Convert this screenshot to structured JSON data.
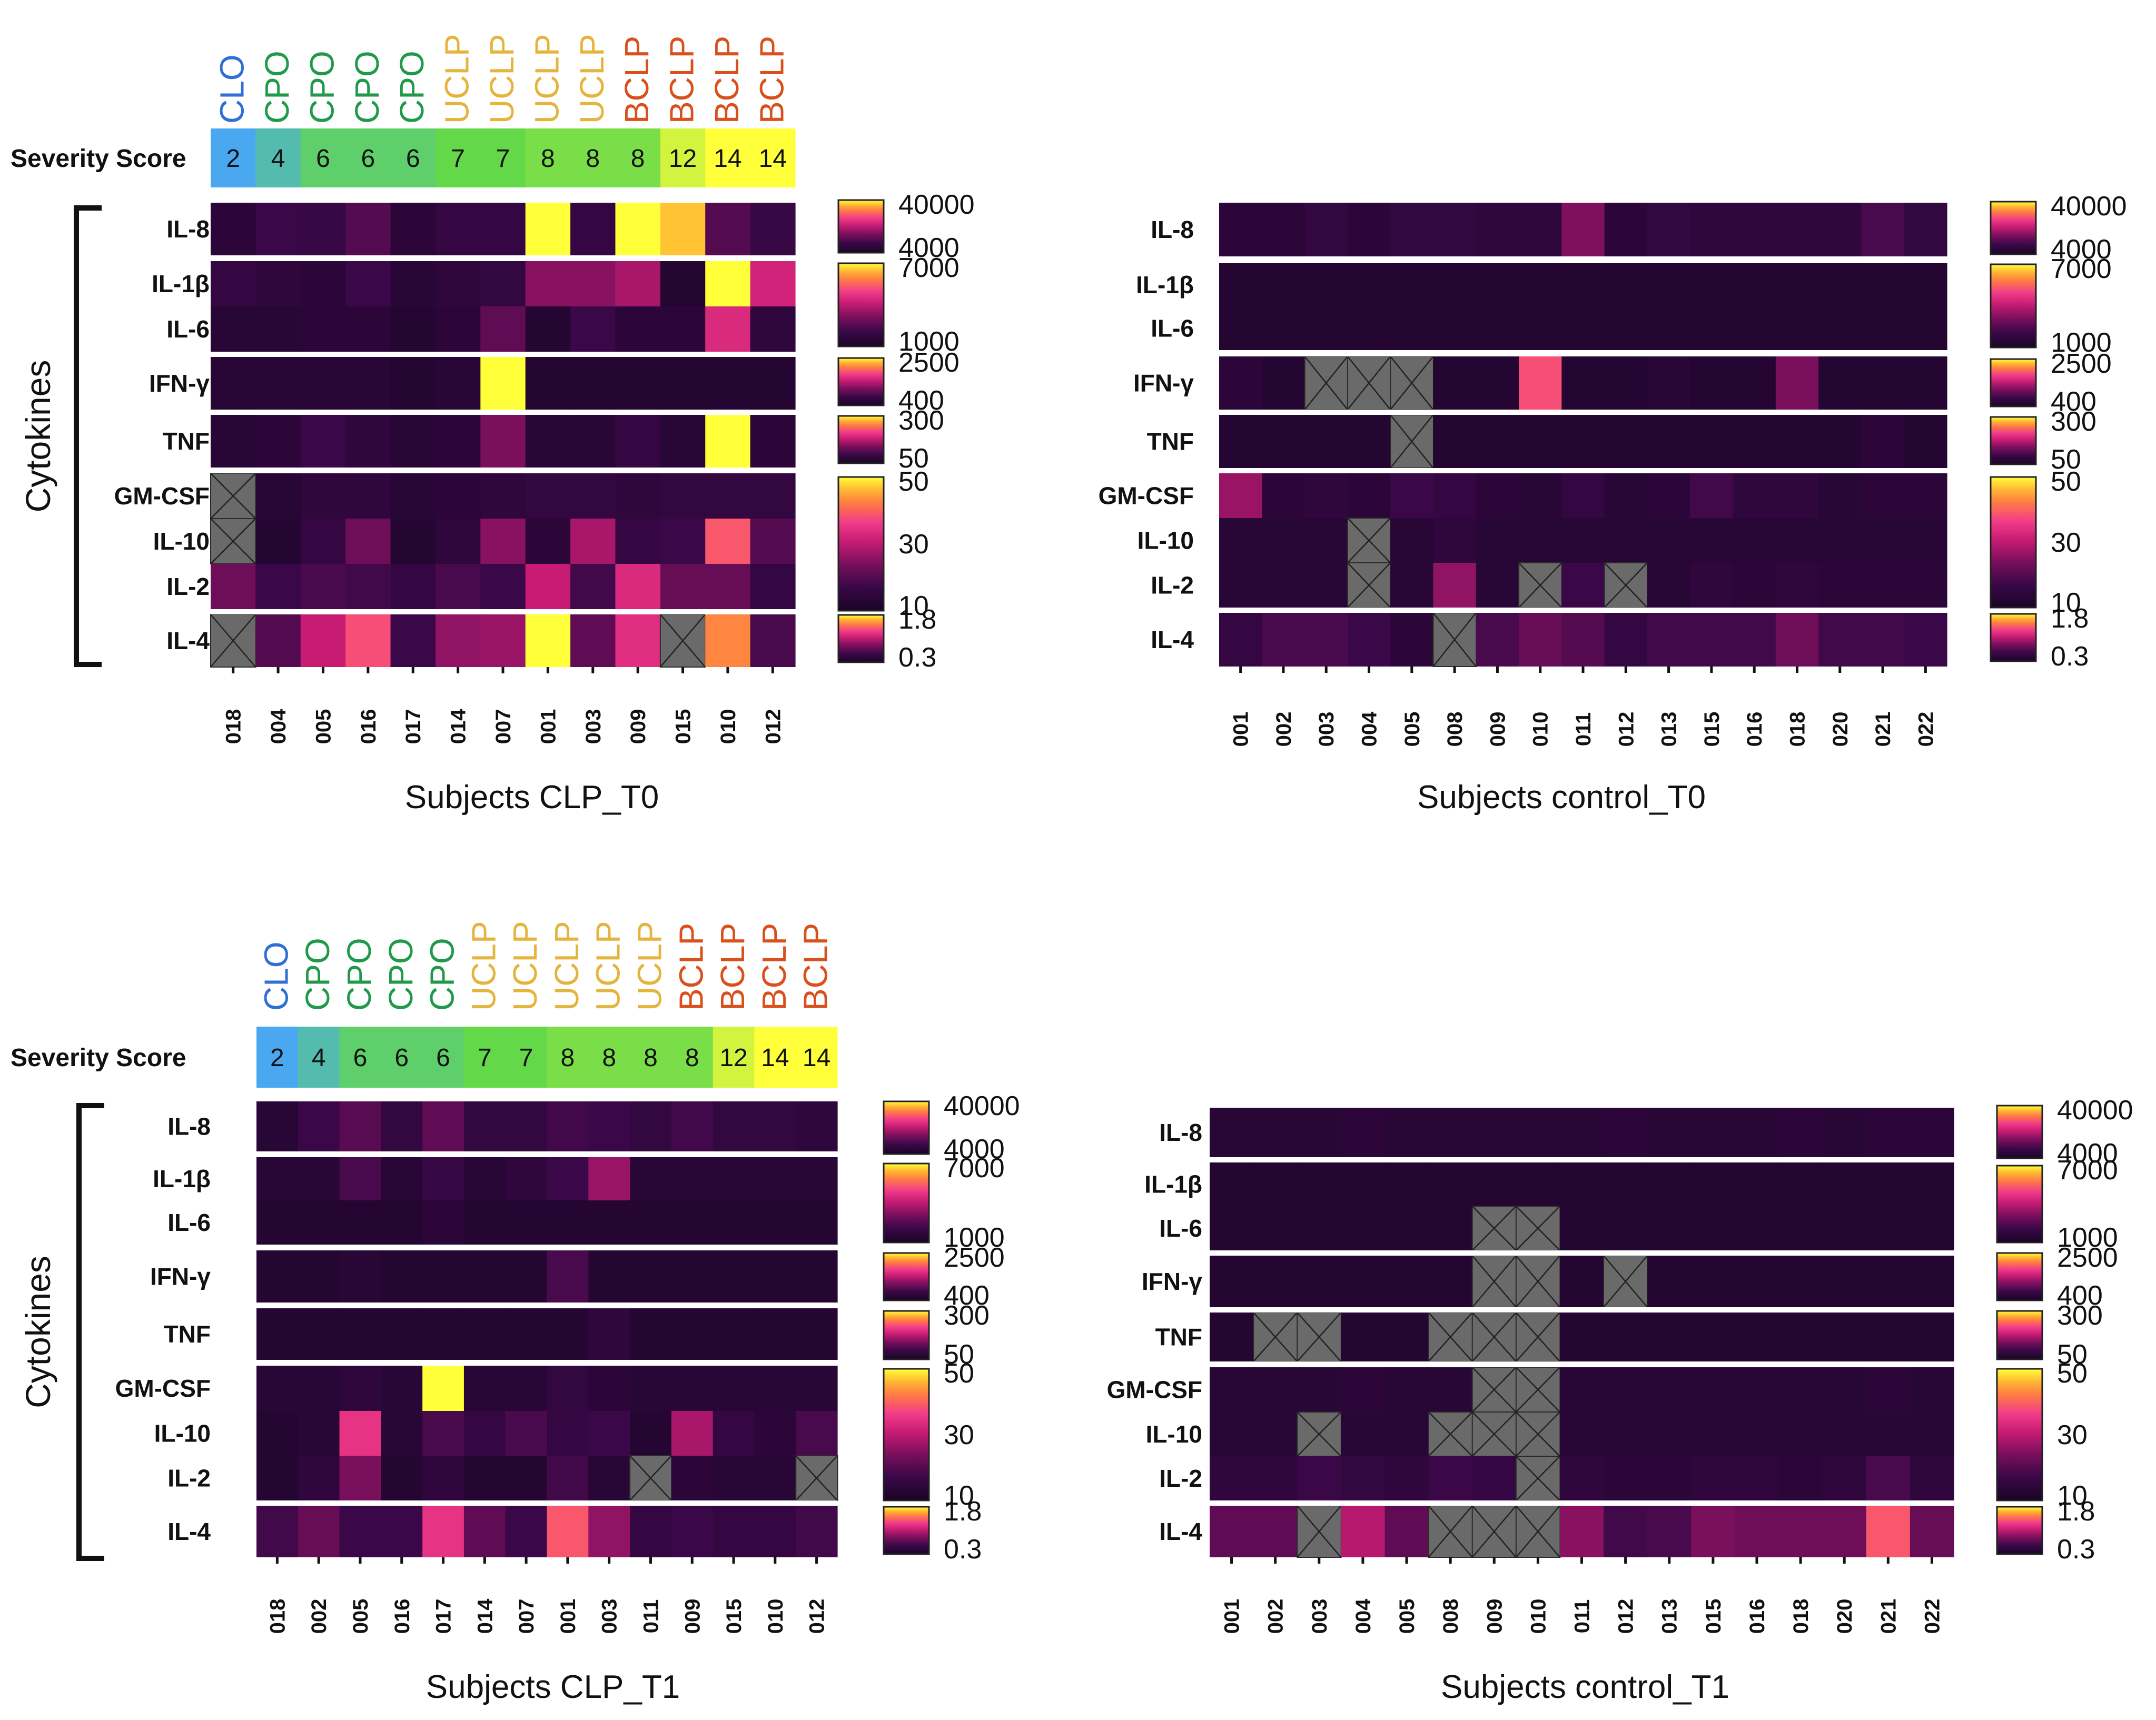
{
  "labels": {
    "severity_score": "Severity Score",
    "cytokines": "Cytokines"
  },
  "colors": {
    "CLO": "#2f6fd6",
    "CPO": "#1f9a4a",
    "UCLP": "#e5b43c",
    "BCLP": "#d9501d",
    "na_cell": "#6a6a6a",
    "score_low": "#4aa8f0",
    "score_mid": "#63d94a",
    "score_high": "#ffff3a",
    "heat_low": "#1a0426",
    "heat_high": "#ffff3a"
  },
  "row_groups": [
    [
      "IL-8"
    ],
    [
      "IL-1β",
      "IL-6"
    ],
    [
      "IFN-γ"
    ],
    [
      "TNF"
    ],
    [
      "GM-CSF",
      "IL-10",
      "IL-2"
    ],
    [
      "IL-4"
    ]
  ],
  "legends": [
    {
      "high": "40000",
      "low": "4000"
    },
    {
      "high": "7000",
      "low": "1000"
    },
    {
      "high": "2500",
      "low": "400"
    },
    {
      "high": "300",
      "low": "50"
    },
    {
      "high": "50",
      "mid": "30",
      "low": "10"
    },
    {
      "high": "1.8",
      "low": "0.3"
    }
  ],
  "chart_data": [
    {
      "type": "heatmap",
      "title": "Subjects CLP_T0",
      "xlabel": "Subjects CLP_T0",
      "ylabel": "Cytokines",
      "value_scale": "relative intensity 0-1 within each cytokine (per-row color scale)",
      "columns": [
        "018",
        "004",
        "005",
        "016",
        "017",
        "014",
        "007",
        "001",
        "003",
        "009",
        "015",
        "010",
        "012"
      ],
      "groups": [
        "CLO",
        "CPO",
        "CPO",
        "CPO",
        "CPO",
        "UCLP",
        "UCLP",
        "UCLP",
        "UCLP",
        "BCLP",
        "BCLP",
        "BCLP",
        "BCLP"
      ],
      "severity_scores": [
        2,
        4,
        6,
        6,
        6,
        7,
        7,
        8,
        8,
        8,
        12,
        14,
        14
      ],
      "rows": [
        "IL-8",
        "IL-1β",
        "IL-6",
        "IFN-γ",
        "TNF",
        "GM-CSF",
        "IL-10",
        "IL-2",
        "IL-4"
      ],
      "values": [
        [
          0.1,
          0.18,
          0.16,
          0.25,
          0.1,
          0.15,
          0.15,
          1.0,
          0.15,
          1.0,
          0.92,
          0.25,
          0.16
        ],
        [
          0.15,
          0.12,
          0.1,
          0.18,
          0.08,
          0.12,
          0.14,
          0.38,
          0.38,
          0.45,
          0.06,
          1.0,
          0.55
        ],
        [
          0.08,
          0.08,
          0.1,
          0.1,
          0.06,
          0.1,
          0.28,
          0.06,
          0.18,
          0.1,
          0.1,
          0.58,
          0.12
        ],
        [
          0.08,
          0.08,
          0.08,
          0.08,
          0.06,
          0.08,
          1.0,
          0.06,
          0.06,
          0.06,
          0.06,
          0.06,
          0.06
        ],
        [
          0.08,
          0.1,
          0.18,
          0.12,
          0.08,
          0.1,
          0.35,
          0.08,
          0.08,
          0.15,
          0.08,
          1.0,
          0.1
        ],
        [
          null,
          0.08,
          0.12,
          0.12,
          0.08,
          0.1,
          0.12,
          0.14,
          0.14,
          0.12,
          0.14,
          0.14,
          0.14
        ],
        [
          null,
          0.06,
          0.15,
          0.32,
          0.06,
          0.12,
          0.38,
          0.1,
          0.45,
          0.15,
          0.18,
          0.72,
          0.25
        ],
        [
          0.32,
          0.18,
          0.22,
          0.2,
          0.15,
          0.22,
          0.18,
          0.52,
          0.2,
          0.58,
          0.3,
          0.3,
          0.15
        ],
        [
          null,
          0.25,
          0.52,
          0.7,
          0.18,
          0.4,
          0.42,
          1.0,
          0.28,
          0.6,
          null,
          0.82,
          0.22
        ]
      ]
    },
    {
      "type": "heatmap",
      "title": "Subjects control_T0",
      "xlabel": "Subjects control_T0",
      "value_scale": "relative intensity 0-1 within each cytokine (per-row color scale)",
      "columns": [
        "001",
        "002",
        "003",
        "004",
        "005",
        "008",
        "009",
        "010",
        "011",
        "012",
        "013",
        "015",
        "016",
        "018",
        "020",
        "021",
        "022"
      ],
      "rows": [
        "IL-8",
        "IL-1β",
        "IL-6",
        "IFN-γ",
        "TNF",
        "GM-CSF",
        "IL-10",
        "IL-2",
        "IL-4"
      ],
      "values": [
        [
          0.1,
          0.1,
          0.14,
          0.1,
          0.14,
          0.14,
          0.12,
          0.12,
          0.36,
          0.1,
          0.14,
          0.12,
          0.12,
          0.12,
          0.12,
          0.22,
          0.14
        ],
        [
          0.06,
          0.06,
          0.06,
          0.06,
          0.06,
          0.06,
          0.06,
          0.06,
          0.06,
          0.06,
          0.06,
          0.06,
          0.06,
          0.06,
          0.06,
          0.06,
          0.06
        ],
        [
          0.06,
          0.06,
          0.06,
          0.06,
          0.06,
          0.06,
          0.06,
          0.06,
          0.06,
          0.06,
          0.06,
          0.06,
          0.06,
          0.06,
          0.06,
          0.06,
          0.06
        ],
        [
          0.1,
          0.06,
          null,
          null,
          null,
          0.06,
          0.06,
          0.7,
          0.06,
          0.06,
          0.08,
          0.06,
          0.06,
          0.35,
          0.06,
          0.06,
          0.06
        ],
        [
          0.06,
          0.06,
          0.06,
          0.06,
          null,
          0.06,
          0.06,
          0.06,
          0.06,
          0.06,
          0.06,
          0.06,
          0.06,
          0.06,
          0.06,
          0.1,
          0.06
        ],
        [
          0.42,
          0.1,
          0.12,
          0.1,
          0.18,
          0.15,
          0.1,
          0.08,
          0.15,
          0.08,
          0.1,
          0.2,
          0.12,
          0.12,
          0.08,
          0.1,
          0.1
        ],
        [
          0.08,
          0.08,
          0.08,
          null,
          0.08,
          0.12,
          0.08,
          0.08,
          0.08,
          0.08,
          0.08,
          0.08,
          0.08,
          0.08,
          0.08,
          0.08,
          0.08
        ],
        [
          0.08,
          0.08,
          0.08,
          null,
          0.08,
          0.4,
          0.08,
          null,
          0.18,
          null,
          0.08,
          0.12,
          0.1,
          0.12,
          0.1,
          0.1,
          0.1
        ],
        [
          0.15,
          0.22,
          0.22,
          0.18,
          0.1,
          null,
          0.22,
          0.3,
          0.25,
          0.15,
          0.2,
          0.2,
          0.2,
          0.32,
          0.2,
          0.2,
          0.18
        ]
      ]
    },
    {
      "type": "heatmap",
      "title": "Subjects CLP_T1",
      "xlabel": "Subjects CLP_T1",
      "ylabel": "Cytokines",
      "value_scale": "relative intensity 0-1 within each cytokine (per-row color scale)",
      "columns": [
        "018",
        "002",
        "005",
        "016",
        "017",
        "014",
        "007",
        "001",
        "003",
        "011",
        "009",
        "015",
        "010",
        "012"
      ],
      "groups": [
        "CLO",
        "CPO",
        "CPO",
        "CPO",
        "CPO",
        "UCLP",
        "UCLP",
        "UCLP",
        "UCLP",
        "UCLP",
        "BCLP",
        "BCLP",
        "BCLP",
        "BCLP"
      ],
      "severity_scores": [
        2,
        4,
        6,
        6,
        6,
        7,
        7,
        8,
        8,
        8,
        8,
        12,
        14,
        14
      ],
      "rows": [
        "IL-8",
        "IL-1β",
        "IL-6",
        "IFN-γ",
        "TNF",
        "GM-CSF",
        "IL-10",
        "IL-2",
        "IL-4"
      ],
      "values": [
        [
          0.08,
          0.18,
          0.26,
          0.14,
          0.28,
          0.14,
          0.14,
          0.2,
          0.18,
          0.14,
          0.2,
          0.14,
          0.14,
          0.12
        ],
        [
          0.08,
          0.08,
          0.22,
          0.08,
          0.16,
          0.08,
          0.12,
          0.18,
          0.42,
          0.08,
          0.08,
          0.08,
          0.08,
          0.08
        ],
        [
          0.06,
          0.06,
          0.06,
          0.06,
          0.1,
          0.06,
          0.06,
          0.06,
          0.06,
          0.06,
          0.06,
          0.06,
          0.06,
          0.06
        ],
        [
          0.06,
          0.06,
          0.08,
          0.06,
          0.06,
          0.06,
          0.06,
          0.22,
          0.06,
          0.06,
          0.06,
          0.06,
          0.06,
          0.06
        ],
        [
          0.06,
          0.06,
          0.06,
          0.06,
          0.06,
          0.06,
          0.06,
          0.06,
          0.12,
          0.06,
          0.06,
          0.06,
          0.06,
          0.06
        ],
        [
          0.08,
          0.08,
          0.12,
          0.08,
          1.0,
          0.08,
          0.08,
          0.14,
          0.1,
          0.08,
          0.08,
          0.08,
          0.08,
          0.08
        ],
        [
          0.06,
          0.08,
          0.62,
          0.08,
          0.22,
          0.15,
          0.22,
          0.15,
          0.18,
          0.06,
          0.45,
          0.15,
          0.1,
          0.22
        ],
        [
          0.06,
          0.12,
          0.35,
          0.06,
          0.12,
          0.06,
          0.06,
          0.2,
          0.08,
          null,
          0.1,
          0.08,
          0.08,
          null
        ],
        [
          0.2,
          0.3,
          0.18,
          0.18,
          0.62,
          0.28,
          0.18,
          0.72,
          0.4,
          0.15,
          0.18,
          0.15,
          0.15,
          0.2
        ]
      ]
    },
    {
      "type": "heatmap",
      "title": "Subjects control_T1",
      "xlabel": "Subjects control_T1",
      "value_scale": "relative intensity 0-1 within each cytokine (per-row color scale)",
      "columns": [
        "001",
        "002",
        "003",
        "004",
        "005",
        "008",
        "009",
        "010",
        "011",
        "012",
        "013",
        "015",
        "016",
        "018",
        "020",
        "021",
        "022"
      ],
      "rows": [
        "IL-8",
        "IL-1β",
        "IL-6",
        "IFN-γ",
        "TNF",
        "GM-CSF",
        "IL-10",
        "IL-2",
        "IL-4"
      ],
      "values": [
        [
          0.08,
          0.08,
          0.08,
          0.1,
          0.08,
          0.08,
          0.08,
          0.08,
          0.08,
          0.1,
          0.08,
          0.08,
          0.08,
          0.1,
          0.08,
          0.1,
          0.1
        ],
        [
          0.06,
          0.06,
          0.06,
          0.06,
          0.06,
          0.06,
          0.06,
          0.06,
          0.06,
          0.06,
          0.06,
          0.06,
          0.06,
          0.06,
          0.06,
          0.06,
          0.06
        ],
        [
          0.06,
          0.06,
          0.06,
          0.06,
          0.06,
          0.06,
          null,
          null,
          0.06,
          0.06,
          0.06,
          0.06,
          0.06,
          0.06,
          0.06,
          0.06,
          0.06
        ],
        [
          0.06,
          0.06,
          0.06,
          0.06,
          0.06,
          0.06,
          null,
          null,
          0.06,
          null,
          0.06,
          0.06,
          0.06,
          0.06,
          0.06,
          0.06,
          0.06
        ],
        [
          0.06,
          null,
          null,
          0.06,
          0.06,
          null,
          null,
          null,
          0.06,
          0.06,
          0.06,
          0.06,
          0.06,
          0.06,
          0.06,
          0.06,
          0.06
        ],
        [
          0.08,
          0.08,
          0.08,
          0.1,
          0.08,
          0.08,
          null,
          null,
          0.08,
          0.08,
          0.08,
          0.08,
          0.08,
          0.08,
          0.08,
          0.1,
          0.08
        ],
        [
          0.08,
          0.08,
          null,
          0.08,
          0.08,
          null,
          null,
          null,
          0.08,
          0.08,
          0.08,
          0.08,
          0.08,
          0.08,
          0.08,
          0.08,
          0.08
        ],
        [
          0.12,
          0.12,
          0.18,
          0.14,
          0.12,
          0.18,
          0.15,
          null,
          0.12,
          0.1,
          0.1,
          0.12,
          0.12,
          0.1,
          0.12,
          0.22,
          0.12
        ],
        [
          0.28,
          0.28,
          null,
          0.48,
          0.28,
          null,
          null,
          null,
          0.38,
          0.2,
          0.22,
          0.35,
          0.32,
          0.32,
          0.32,
          0.72,
          0.3
        ]
      ]
    }
  ]
}
